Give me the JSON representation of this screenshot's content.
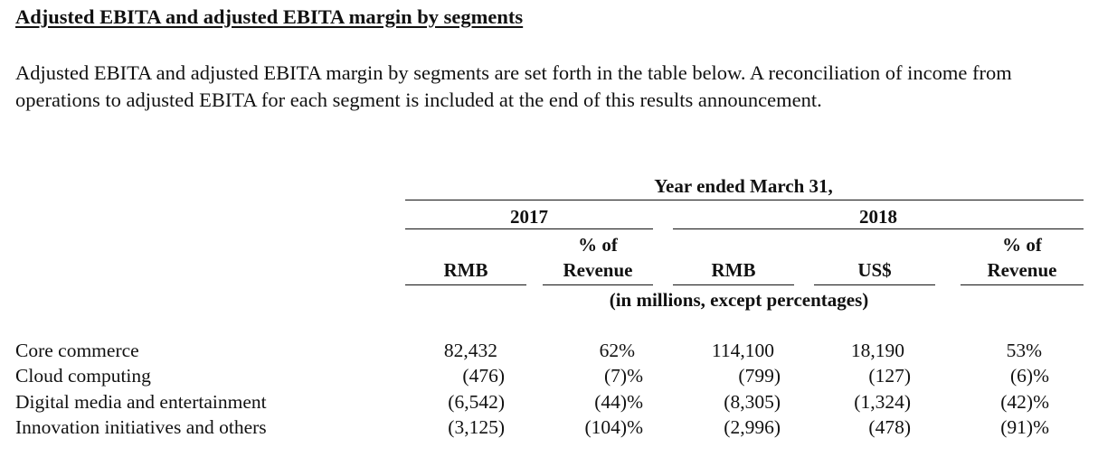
{
  "section_title": "Adjusted EBITA and adjusted EBITA margin by segments",
  "intro_text": "Adjusted EBITA and adjusted EBITA margin by segments are set forth in the table below. A reconciliation of income from operations to adjusted EBITA for each segment is included at the end of this results announcement.",
  "table": {
    "period_header": "Year ended March 31,",
    "years": [
      "2017",
      "2018"
    ],
    "column_headers": {
      "rmb_2017": "RMB",
      "pct_2017_line1": "% of",
      "pct_2017_line2": "Revenue",
      "rmb_2018": "RMB",
      "usd_2018": "US$",
      "pct_2018_line1": "% of",
      "pct_2018_line2": "Revenue"
    },
    "unit_note": "(in millions, except percentages)",
    "rows": [
      {
        "label": "Core commerce",
        "rmb_2017": "82,432",
        "pct_2017": "62%",
        "rmb_2018": "114,100",
        "usd_2018": "18,190",
        "pct_2018": "53%"
      },
      {
        "label": "Cloud computing",
        "rmb_2017": "(476)",
        "pct_2017": "(7)%",
        "rmb_2018": "(799)",
        "usd_2018": "(127)",
        "pct_2018": "(6)%"
      },
      {
        "label": "Digital media and entertainment",
        "rmb_2017": "(6,542)",
        "pct_2017": "(44)%",
        "rmb_2018": "(8,305)",
        "usd_2018": "(1,324)",
        "pct_2018": "(42)%"
      },
      {
        "label": "Innovation initiatives and others",
        "rmb_2017": "(3,125)",
        "pct_2017": "(104)%",
        "rmb_2018": "(2,996)",
        "usd_2018": "(478)",
        "pct_2018": "(91)%"
      }
    ]
  }
}
